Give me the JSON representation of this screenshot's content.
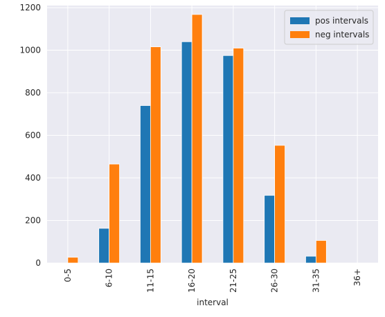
{
  "chart_data": {
    "type": "bar",
    "categories": [
      "0-5",
      "6-10",
      "11-15",
      "16-20",
      "21-25",
      "26-30",
      "31-35",
      "36+"
    ],
    "series": [
      {
        "name": "pos intervals",
        "values": [
          0,
          163,
          740,
          1040,
          975,
          318,
          32,
          0
        ],
        "color": "#1f77b4"
      },
      {
        "name": "neg intervals",
        "values": [
          27,
          465,
          1016,
          1168,
          1010,
          553,
          106,
          0
        ],
        "color": "#ff7f0e"
      }
    ],
    "title": "",
    "xlabel": "interval",
    "ylabel": "",
    "ylim": [
      0,
      1210
    ],
    "yticks": [
      0,
      200,
      400,
      600,
      800,
      1000,
      1200
    ],
    "grid": true,
    "legend": "top-right",
    "background": "#eaeaf2",
    "grid_color": "#ffffff"
  }
}
